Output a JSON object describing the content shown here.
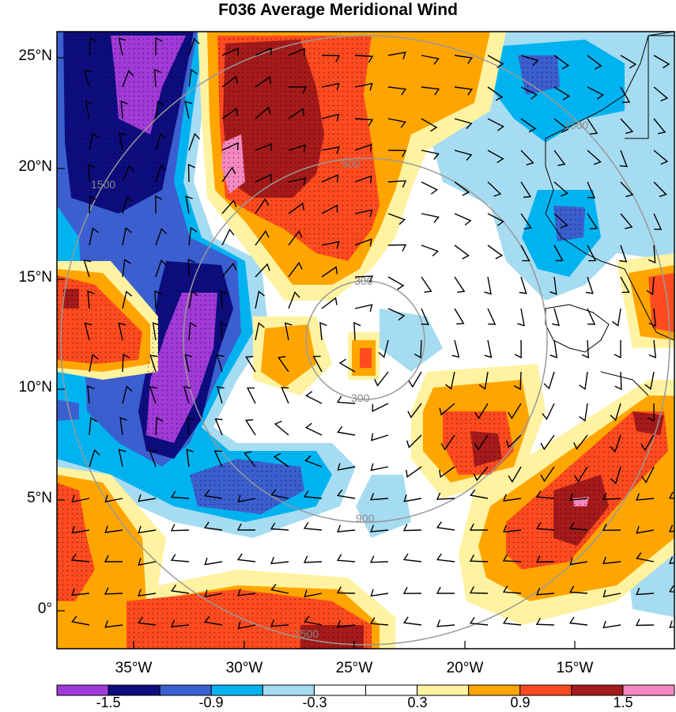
{
  "title": "F036 Average Meridional Wind",
  "lat_labels": [
    "25°N",
    "20°N",
    "15°N",
    "10°N",
    "5°N",
    "0°"
  ],
  "lon_labels": [
    "35°W",
    "30°W",
    "25°W",
    "20°W",
    "15°W"
  ],
  "colorbar": {
    "colors": [
      "#a03ad8",
      "#0d0d7f",
      "#3b5fcf",
      "#00b3f0",
      "#a6dcf2",
      "#ffffff",
      "#ffffff",
      "#fff2a0",
      "#ffa500",
      "#ff4b1f",
      "#a51a1a",
      "#f588c0"
    ],
    "labels": [
      "-1.5",
      "-0.9",
      "-0.3",
      "0.3",
      "0.9",
      "1.5"
    ]
  },
  "range_ring_labels": [
    "300",
    "900",
    "1500"
  ],
  "map_features": {
    "projection": "lat-lon",
    "stippling": "significance dots",
    "wind_barbs": true
  }
}
